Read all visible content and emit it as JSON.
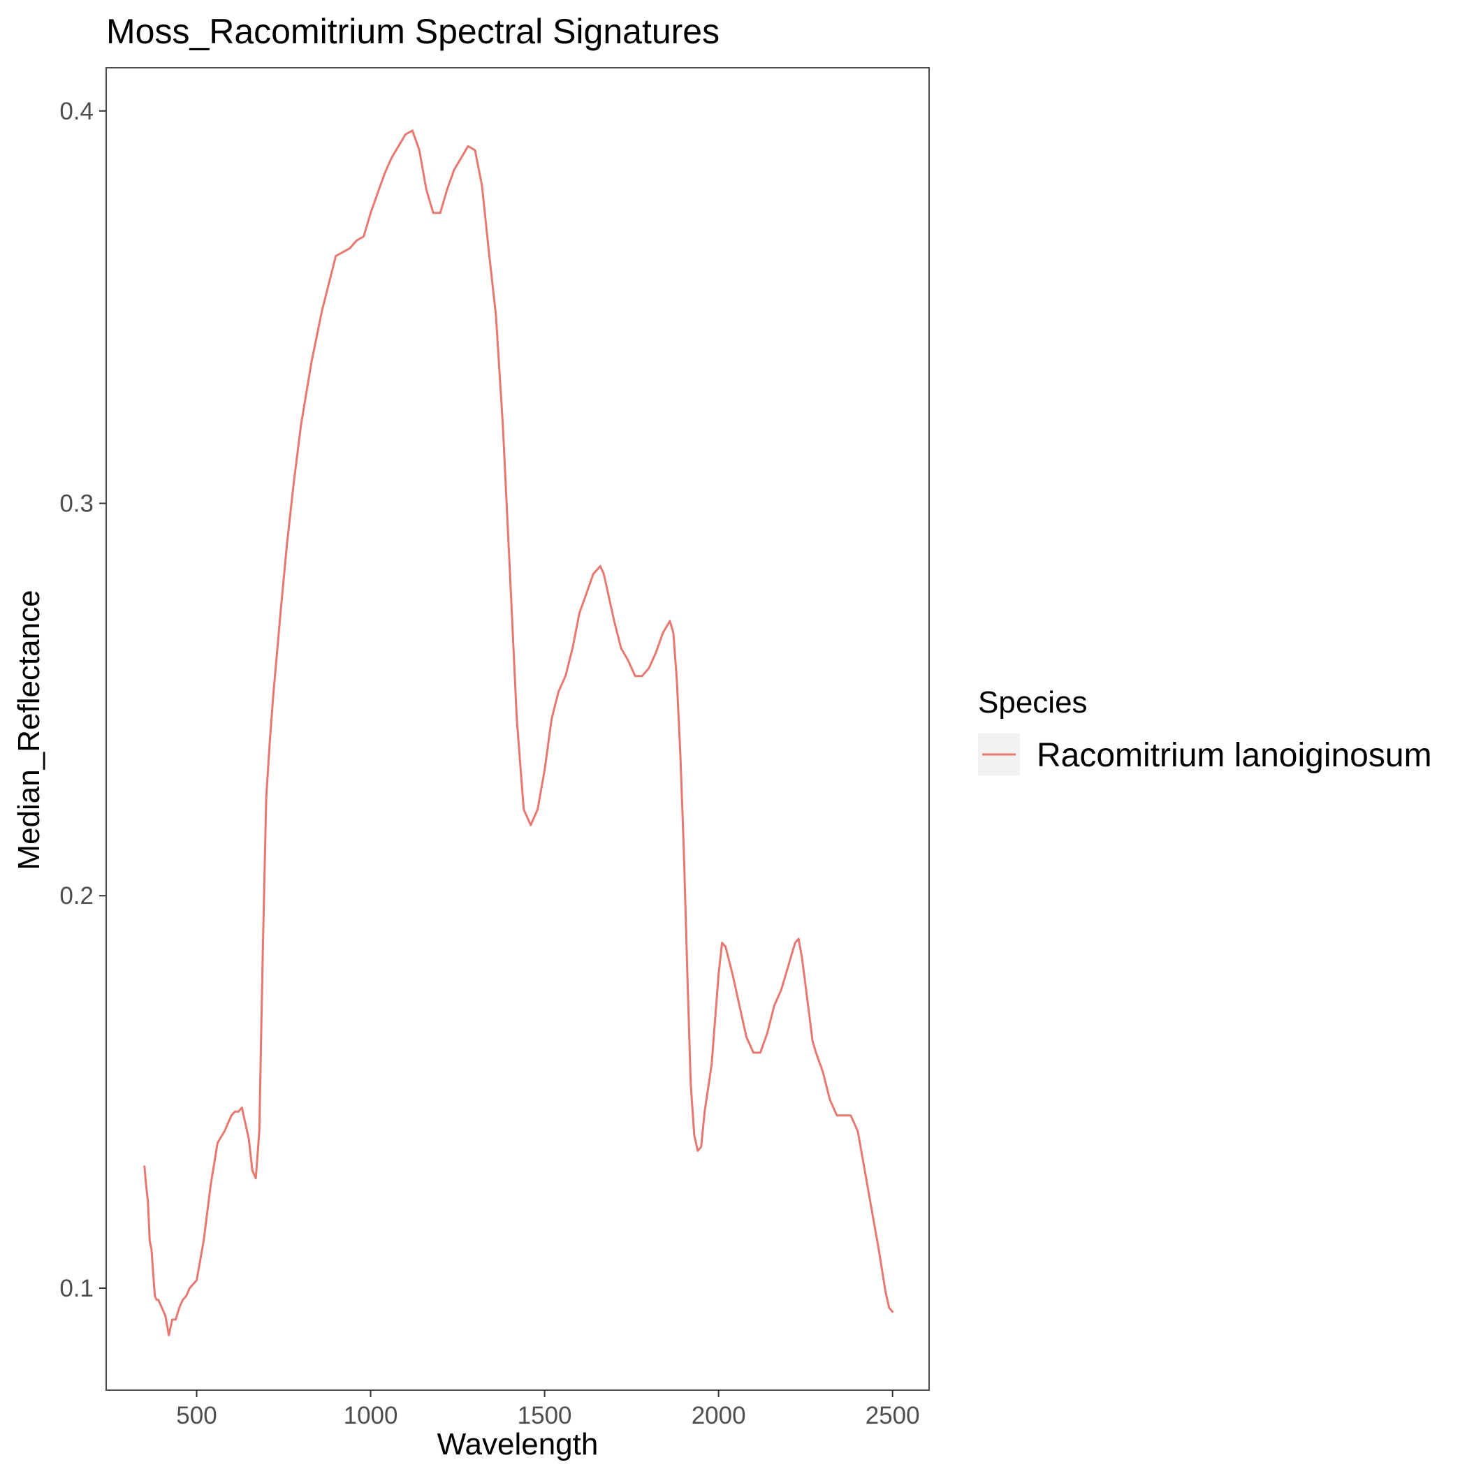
{
  "chart_data": {
    "type": "line",
    "title": "Moss_Racomitrium Spectral Signatures",
    "xlabel": "Wavelength",
    "ylabel": "Median_Reflectance",
    "xlim": [
      240,
      2605
    ],
    "ylim": [
      0.074,
      0.411
    ],
    "x_ticks": [
      500,
      1000,
      1500,
      2000,
      2500
    ],
    "x_tick_labels": [
      "500",
      "1000",
      "1500",
      "2000",
      "2500"
    ],
    "y_ticks": [
      0.1,
      0.2,
      0.3,
      0.4
    ],
    "y_tick_labels": [
      "0.1",
      "0.2",
      "0.3",
      "0.4"
    ],
    "grid": false,
    "legend": {
      "title": "Species",
      "position": "right",
      "entries": [
        "Racomitrium lanoiginosum"
      ]
    },
    "series": [
      {
        "name": "Racomitrium lanoiginosum",
        "color": "#e8776f",
        "x": [
          350,
          355,
          360,
          365,
          370,
          375,
          380,
          385,
          390,
          400,
          410,
          420,
          430,
          440,
          450,
          460,
          470,
          480,
          490,
          500,
          520,
          540,
          560,
          580,
          600,
          610,
          620,
          630,
          640,
          650,
          660,
          670,
          680,
          690,
          700,
          710,
          720,
          730,
          740,
          760,
          780,
          800,
          830,
          860,
          900,
          940,
          960,
          980,
          1000,
          1020,
          1040,
          1060,
          1080,
          1100,
          1120,
          1140,
          1160,
          1180,
          1200,
          1220,
          1240,
          1260,
          1280,
          1300,
          1320,
          1340,
          1360,
          1380,
          1400,
          1420,
          1440,
          1460,
          1480,
          1500,
          1520,
          1540,
          1560,
          1580,
          1600,
          1620,
          1640,
          1660,
          1670,
          1680,
          1700,
          1720,
          1740,
          1760,
          1780,
          1800,
          1820,
          1840,
          1860,
          1870,
          1880,
          1890,
          1900,
          1910,
          1920,
          1930,
          1940,
          1950,
          1960,
          1980,
          2000,
          2010,
          2020,
          2040,
          2060,
          2080,
          2100,
          2120,
          2140,
          2160,
          2180,
          2200,
          2220,
          2230,
          2240,
          2260,
          2270,
          2280,
          2300,
          2320,
          2340,
          2360,
          2380,
          2400,
          2420,
          2440,
          2460,
          2480,
          2490,
          2500
        ],
        "y": [
          0.131,
          0.126,
          0.122,
          0.112,
          0.11,
          0.104,
          0.098,
          0.097,
          0.097,
          0.095,
          0.093,
          0.088,
          0.092,
          0.092,
          0.095,
          0.097,
          0.098,
          0.1,
          0.101,
          0.102,
          0.112,
          0.126,
          0.137,
          0.14,
          0.144,
          0.145,
          0.145,
          0.146,
          0.142,
          0.138,
          0.13,
          0.128,
          0.14,
          0.185,
          0.225,
          0.239,
          0.251,
          0.261,
          0.271,
          0.29,
          0.306,
          0.32,
          0.336,
          0.349,
          0.363,
          0.365,
          0.367,
          0.368,
          0.374,
          0.379,
          0.384,
          0.388,
          0.391,
          0.394,
          0.395,
          0.39,
          0.38,
          0.374,
          0.374,
          0.38,
          0.385,
          0.388,
          0.391,
          0.39,
          0.381,
          0.364,
          0.348,
          0.32,
          0.283,
          0.245,
          0.222,
          0.218,
          0.222,
          0.232,
          0.245,
          0.252,
          0.256,
          0.263,
          0.272,
          0.277,
          0.282,
          0.284,
          0.282,
          0.278,
          0.27,
          0.263,
          0.26,
          0.256,
          0.256,
          0.258,
          0.262,
          0.267,
          0.27,
          0.267,
          0.255,
          0.236,
          0.212,
          0.181,
          0.152,
          0.139,
          0.135,
          0.136,
          0.145,
          0.157,
          0.18,
          0.188,
          0.187,
          0.18,
          0.172,
          0.164,
          0.16,
          0.16,
          0.165,
          0.172,
          0.176,
          0.182,
          0.188,
          0.189,
          0.184,
          0.17,
          0.163,
          0.16,
          0.155,
          0.148,
          0.144,
          0.144,
          0.144,
          0.14,
          0.13,
          0.12,
          0.11,
          0.099,
          0.095,
          0.094
        ]
      }
    ]
  }
}
